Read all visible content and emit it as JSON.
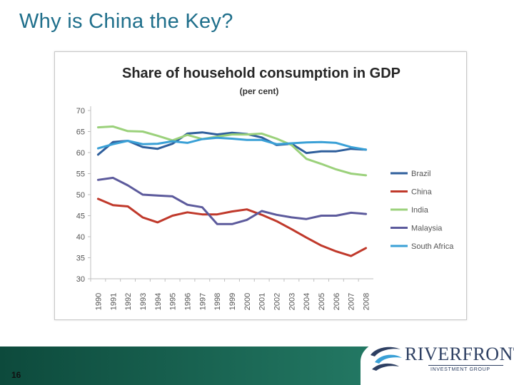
{
  "slide": {
    "title": "Why is China the Key?",
    "page_number": "16"
  },
  "logo": {
    "name": "RIVERFRONT",
    "subtitle": "INVESTMENT GROUP"
  },
  "colors": {
    "title": "#1f6f8b",
    "footer_band": "#1c6a57"
  },
  "chart_data": {
    "type": "line",
    "title": "Share of household consumption in GDP",
    "subtitle": "(per cent)",
    "xlabel": "",
    "ylabel": "",
    "ylim": [
      30,
      70
    ],
    "yticks": [
      30,
      35,
      40,
      45,
      50,
      55,
      60,
      65,
      70
    ],
    "x": [
      "1990",
      "1991",
      "1992",
      "1993",
      "1994",
      "1995",
      "1996",
      "1997",
      "1998",
      "1999",
      "2000",
      "2001",
      "2002",
      "2003",
      "2004",
      "2005",
      "2006",
      "2007",
      "2008"
    ],
    "legend_position": "right",
    "series": [
      {
        "name": "Brazil",
        "color": "#2f5f9c",
        "values": [
          59.5,
          62.5,
          62.8,
          61.3,
          60.9,
          62.1,
          64.5,
          64.8,
          64.3,
          64.7,
          64.4,
          63.6,
          61.8,
          62.1,
          59.9,
          60.3,
          60.3,
          60.9,
          60.7
        ]
      },
      {
        "name": "China",
        "color": "#c0392b",
        "values": [
          49.0,
          47.5,
          47.2,
          44.6,
          43.4,
          45.0,
          45.8,
          45.3,
          45.3,
          46.0,
          46.5,
          45.2,
          43.7,
          41.8,
          39.8,
          37.9,
          36.5,
          35.4,
          37.3
        ]
      },
      {
        "name": "India",
        "color": "#9bd17b",
        "values": [
          66.0,
          66.2,
          65.1,
          65.0,
          64.0,
          62.9,
          64.2,
          63.2,
          63.8,
          64.3,
          64.3,
          64.5,
          63.3,
          61.8,
          58.5,
          57.3,
          56.0,
          55.0,
          54.6
        ]
      },
      {
        "name": "Malaysia",
        "color": "#5c5a9c",
        "values": [
          53.5,
          54.0,
          52.2,
          50.0,
          49.8,
          49.6,
          47.6,
          47.0,
          43.0,
          43.0,
          44.0,
          46.1,
          45.2,
          44.6,
          44.2,
          45.0,
          45.0,
          45.7,
          45.4
        ]
      },
      {
        "name": "South Africa",
        "color": "#3aa0d6",
        "values": [
          61.0,
          62.0,
          62.8,
          62.0,
          62.1,
          62.7,
          62.3,
          63.2,
          63.5,
          63.3,
          63.0,
          63.0,
          62.0,
          62.2,
          62.4,
          62.5,
          62.3,
          61.3,
          60.7
        ]
      }
    ]
  }
}
